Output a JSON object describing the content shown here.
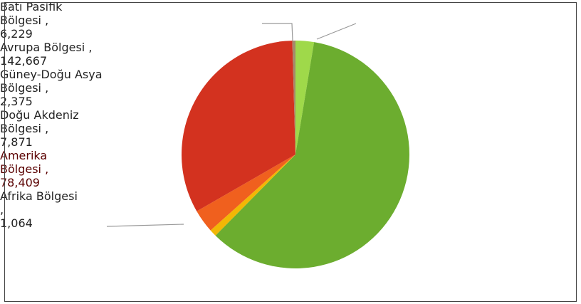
{
  "chart_data": {
    "type": "pie",
    "categories": [
      "Batı Pasifik Bölgesi ,",
      "Avrupa Bölgesi ,",
      "Güney-Doğu Asya Bölgesi ,",
      "Doğu Akdeniz Bölgesi ,",
      "Amerika Bölgesi ,",
      "Afrika Bölgesi ,"
    ],
    "values": [
      6229,
      142667,
      2375,
      7871,
      78409,
      1064
    ],
    "value_labels": [
      "6,229",
      "142,667",
      "2,375",
      "7,871",
      "78,409",
      "1,064"
    ],
    "colors": [
      "#9fd94a",
      "#6cad2f",
      "#f2b705",
      "#f0601e",
      "#d3321f",
      "#a48a6c"
    ]
  }
}
